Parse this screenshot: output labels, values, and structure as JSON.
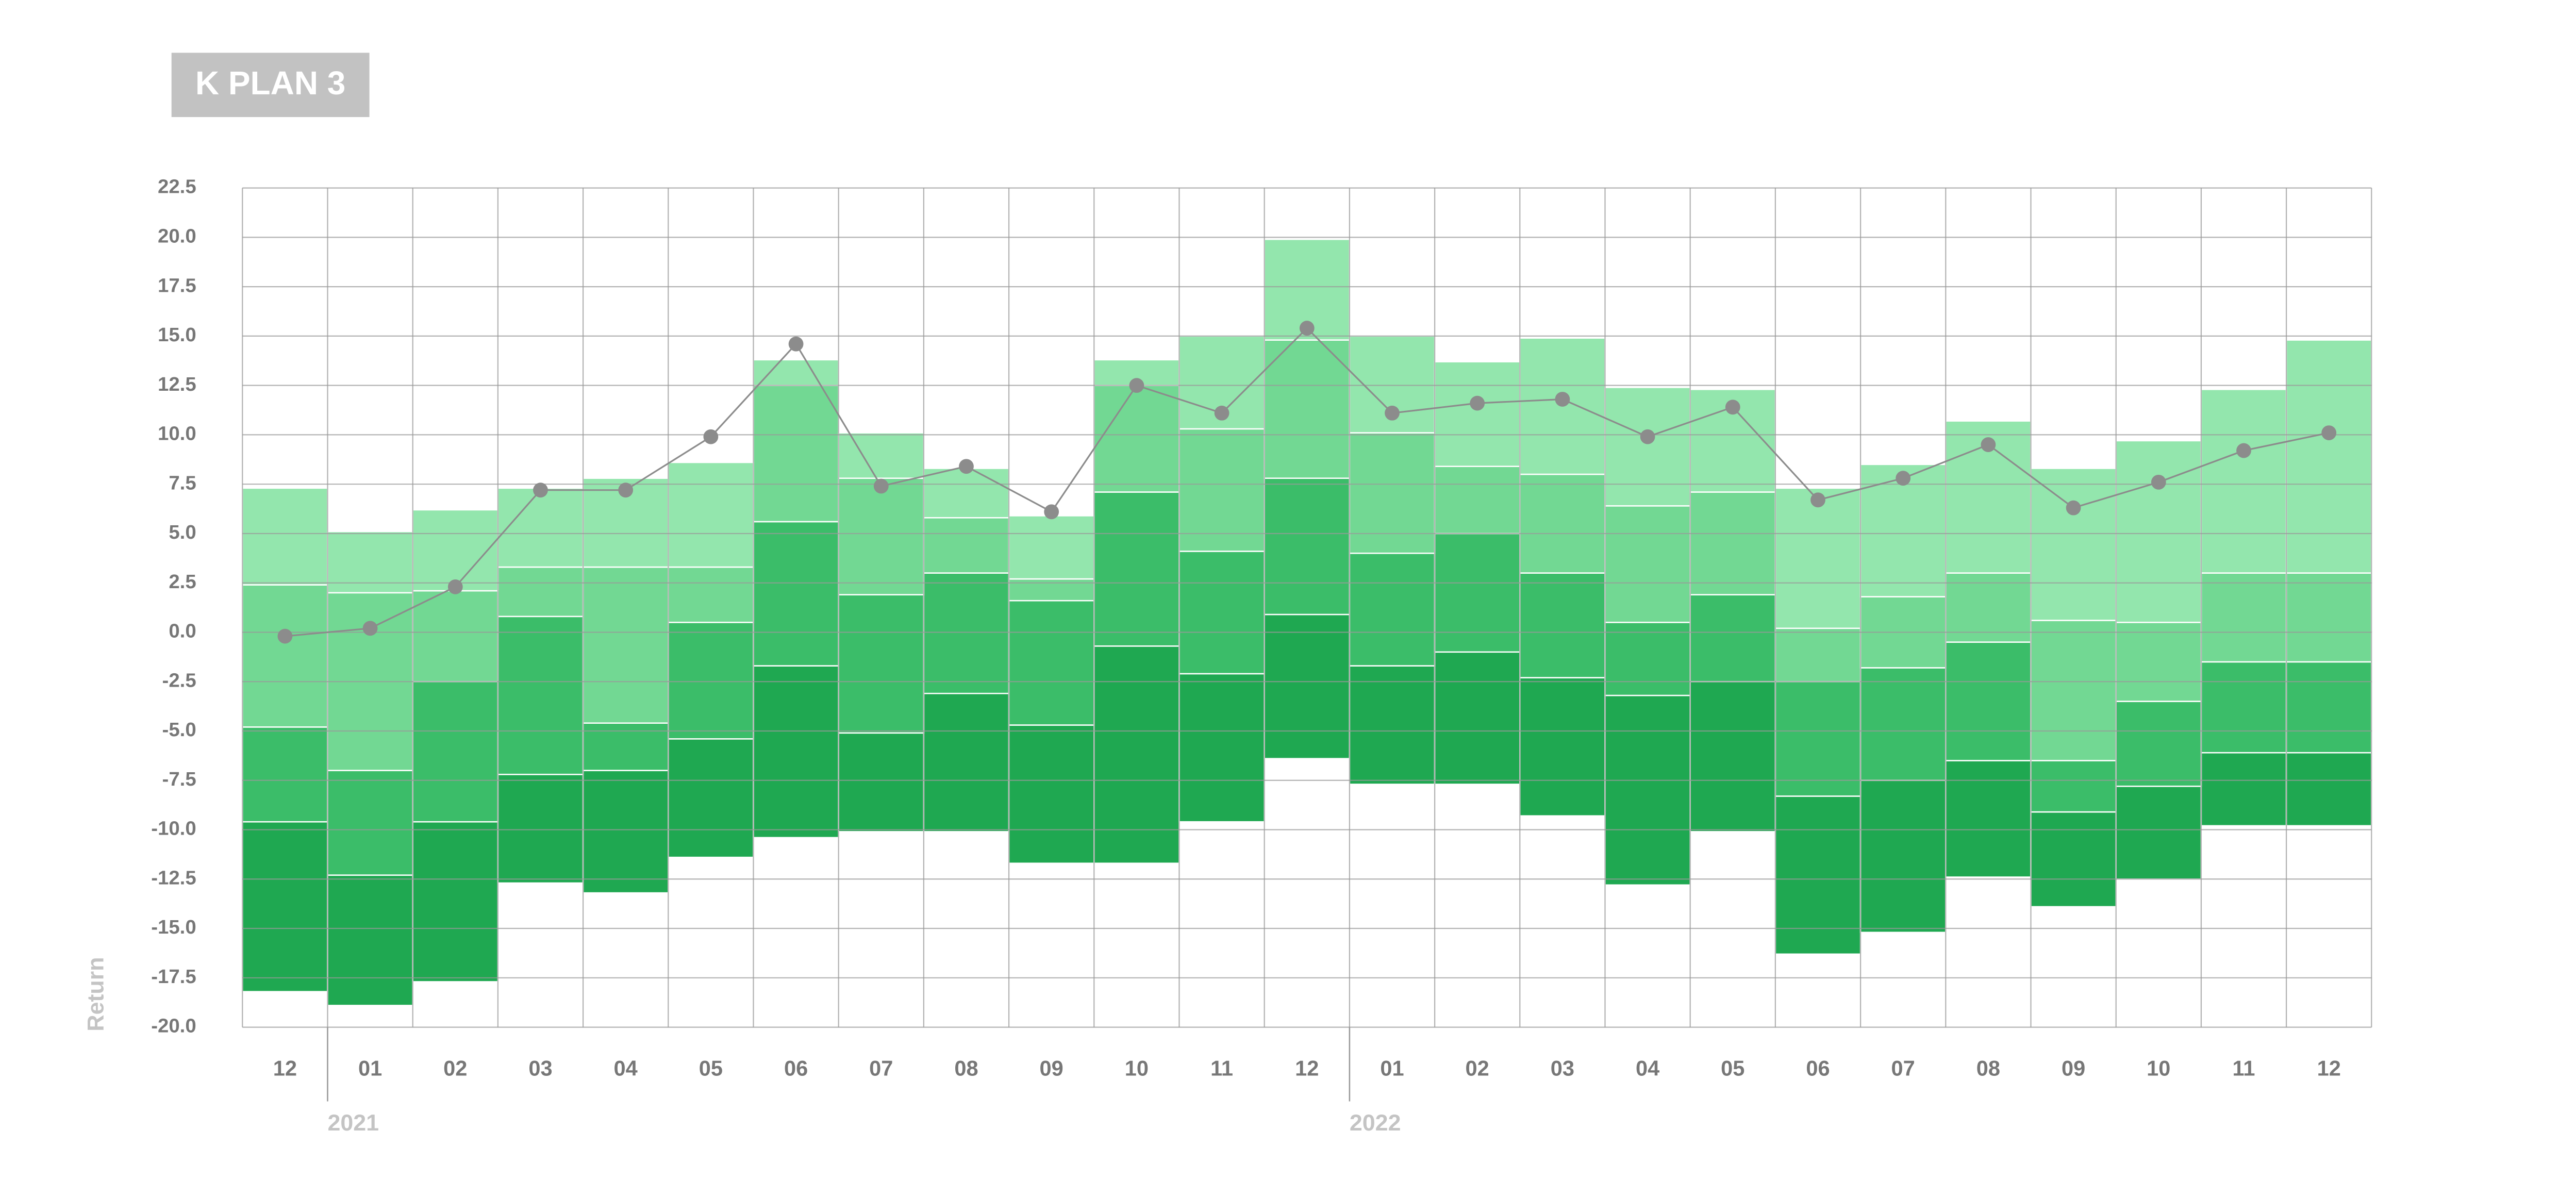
{
  "chart_data": {
    "type": "band",
    "title": "K PLAN 3",
    "y_label": "Return",
    "categories": [
      "12",
      "01",
      "02",
      "03",
      "04",
      "05",
      "06",
      "07",
      "08",
      "09",
      "10",
      "11",
      "12",
      "01",
      "02",
      "03",
      "04",
      "05",
      "06",
      "07",
      "08",
      "09",
      "10",
      "11",
      "12"
    ],
    "year_labels": [
      null,
      "2021",
      null,
      null,
      null,
      null,
      null,
      null,
      null,
      null,
      null,
      null,
      null,
      "2022",
      null,
      null,
      null,
      null,
      null,
      null,
      null,
      null,
      null,
      null,
      null
    ],
    "levels": [
      [
        -18.2,
        -18.9,
        -17.7,
        -12.7,
        -13.2,
        -11.4,
        -10.4,
        -10.1,
        -10.1,
        -11.7,
        -11.7,
        -9.6,
        -6.4,
        -7.7,
        -7.7,
        -9.3,
        -12.8,
        -10.1,
        -16.3,
        -15.2,
        -12.4,
        -13.9,
        -12.5,
        -9.8,
        -9.8
      ],
      [
        -9.6,
        -12.3,
        -9.6,
        -7.2,
        -7.0,
        -5.4,
        -1.7,
        -5.1,
        -3.1,
        -4.7,
        -0.7,
        -2.1,
        0.9,
        -1.7,
        -1.0,
        -2.3,
        -3.2,
        -2.5,
        -8.3,
        -7.5,
        -6.5,
        -9.1,
        -7.8,
        -6.1,
        -6.1
      ],
      [
        -4.8,
        -7.0,
        -2.5,
        0.8,
        -4.6,
        0.5,
        5.6,
        1.9,
        3.0,
        1.6,
        7.1,
        4.1,
        7.8,
        4.0,
        5.0,
        3.0,
        0.5,
        1.9,
        -2.5,
        -1.8,
        -0.5,
        -6.5,
        -3.5,
        -1.5,
        -1.5
      ],
      [
        2.4,
        2.0,
        2.1,
        3.3,
        3.3,
        3.3,
        12.5,
        7.8,
        5.8,
        2.7,
        12.5,
        10.3,
        14.8,
        10.1,
        8.4,
        8.0,
        6.4,
        7.1,
        0.2,
        1.8,
        3.0,
        0.6,
        0.5,
        3.0,
        3.0
      ],
      [
        7.3,
        5.1,
        6.2,
        7.3,
        7.8,
        8.6,
        13.8,
        10.1,
        8.3,
        5.9,
        13.8,
        15.0,
        19.9,
        15.0,
        13.7,
        14.9,
        12.4,
        12.3,
        7.3,
        8.5,
        10.7,
        8.3,
        9.7,
        12.3,
        14.8
      ]
    ],
    "level_colors": [
      "#1fa851",
      "#3bbd69",
      "#72d893",
      "#93e6ad"
    ],
    "line": {
      "color": "#8c8c8c",
      "values": [
        -0.2,
        0.2,
        2.3,
        7.2,
        7.2,
        9.9,
        14.6,
        7.4,
        8.4,
        6.1,
        12.5,
        11.1,
        15.4,
        11.1,
        11.6,
        11.8,
        9.9,
        11.4,
        6.7,
        7.8,
        9.5,
        6.3,
        7.6,
        9.2,
        10.1
      ]
    },
    "ylim": [
      -20,
      22.5
    ],
    "yticks": [
      22.5,
      {
        "value": 20,
        "label": "20.0"
      },
      17.5,
      {
        "value": 15,
        "label": "15.0"
      },
      12.5,
      {
        "value": 10,
        "label": "10.0"
      },
      7.5,
      {
        "value": 5,
        "label": "5.0"
      },
      2.5,
      {
        "value": 0,
        "label": "0.0"
      },
      -2.5,
      {
        "value": -5,
        "label": "-5.0"
      },
      -7.5,
      {
        "value": -10,
        "label": "-10.0"
      },
      -12.5,
      {
        "value": -15,
        "label": "-15.0"
      },
      -17.5,
      {
        "value": -20,
        "label": "-20.0"
      }
    ],
    "grid": true
  }
}
